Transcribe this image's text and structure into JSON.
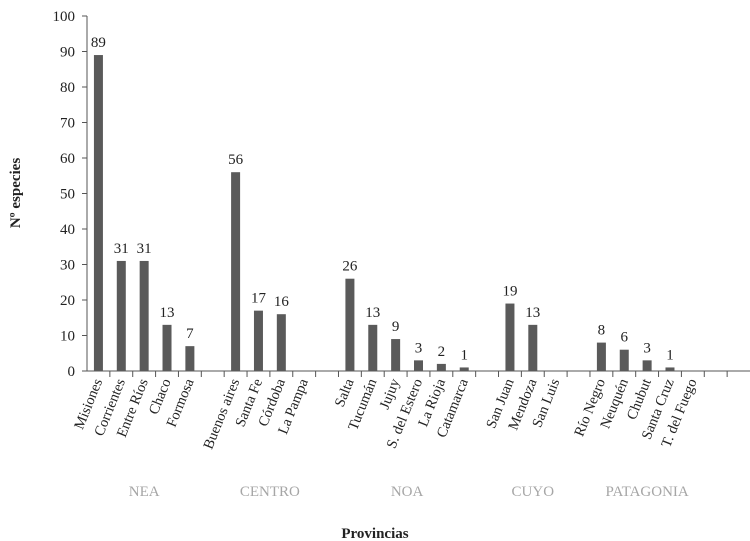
{
  "chart_data": {
    "type": "bar",
    "xlabel": "Provincias",
    "ylabel": "Nº especies",
    "ylim": [
      0,
      100
    ],
    "yticks": [
      "0",
      "10",
      "20",
      "30",
      "40",
      "50",
      "60",
      "70",
      "80",
      "90",
      "100"
    ],
    "grid": false,
    "bar_color": "#5a5a5a",
    "region_color": "#a6a6a6",
    "categories": [
      "Misiones",
      "Corrientes",
      "Entre Ríos",
      "Chaco",
      "Formosa",
      "",
      "Buenos aires",
      "Santa Fe",
      "Córdoba",
      "La Pampa",
      "",
      "Salta",
      "Tucumán",
      "Jujuy",
      "S. del Estero",
      "La Rioja",
      "Catamarca",
      "",
      "San Juan",
      "Mendoza",
      "San Luis",
      "",
      "Río Negro",
      "Neuquén",
      "Chubut",
      "Santa Cruz",
      "T. del Fuego",
      "",
      ""
    ],
    "values": [
      89,
      31,
      31,
      13,
      7,
      null,
      56,
      17,
      16,
      null,
      null,
      26,
      13,
      9,
      3,
      2,
      1,
      null,
      19,
      13,
      null,
      null,
      8,
      6,
      3,
      1,
      null,
      null,
      null
    ],
    "groups": [
      {
        "label": "NEA",
        "from": 0,
        "to": 4
      },
      {
        "label": "CENTRO",
        "from": 6,
        "to": 9
      },
      {
        "label": "NOA",
        "from": 11,
        "to": 16
      },
      {
        "label": "CUYO",
        "from": 18,
        "to": 20
      },
      {
        "label": "PATAGONIA",
        "from": 22,
        "to": 26
      }
    ]
  }
}
